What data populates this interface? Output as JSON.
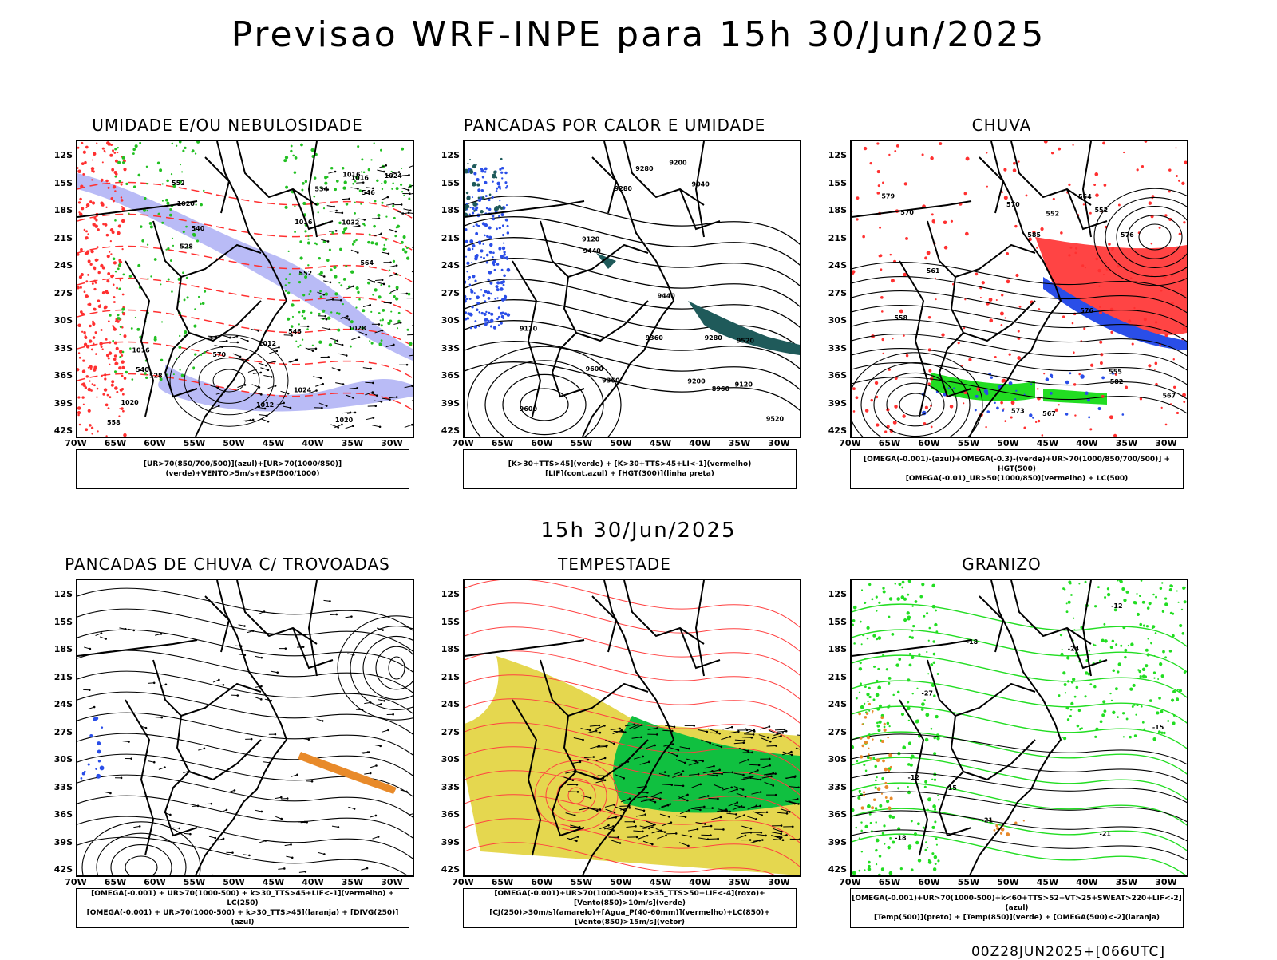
{
  "page": {
    "title": "Previsao WRF-INPE  para 15h 30/Jun/2025",
    "mid_time": "15h 30/Jun/2025",
    "footer": "00Z28JUN2025+[066UTC]"
  },
  "axes": {
    "lat_labels": [
      "12S",
      "15S",
      "18S",
      "21S",
      "24S",
      "27S",
      "30S",
      "33S",
      "36S",
      "39S",
      "42S"
    ],
    "lon_labels": [
      "70W",
      "65W",
      "60W",
      "55W",
      "50W",
      "45W",
      "40W",
      "35W",
      "30W"
    ]
  },
  "panels": [
    {
      "title": "UMIDADE E/OU NEBULOSIDADE",
      "legend": [
        "[UR>70(850/700/500)](azul)+[UR>70(1000/850)](verde)+VENTO>5m/s+ESP(500/1000)"
      ],
      "colors": {
        "moist": "#8a8ef0",
        "green": "#22c022",
        "red": "#ff3030"
      }
    },
    {
      "title": "PANCADAS POR CALOR E UMIDADE",
      "legend": [
        "[K>30+TTS>45](verde) + [K>30+TTS>45+LI<-1](vermelho)",
        "[LIF](cont.azul) + [HGT(300)](linha preta)"
      ],
      "colors": {
        "teal": "#1f5a5a",
        "blue": "#2a4ee8"
      }
    },
    {
      "title": "CHUVA",
      "legend": [
        "[OMEGA(-0.001)-(azul)+OMEGA(-0.3)-(verde)+UR>70(1000/850/700/500)] + HGT(500)",
        "[OMEGA(-0.01)_UR>50(1000/850)(vermelho) + LC(500)"
      ],
      "colors": {
        "red": "#ff3030",
        "blue": "#2a4ee8",
        "green": "#22dd22"
      }
    },
    {
      "title": "PANCADAS DE CHUVA C/ TROVOADAS",
      "legend": [
        "[OMEGA(-0.001) + UR>70(1000-500) + k>30_TTS>45+LIF<-1](vermelho) + LC(250)",
        "[OMEGA(-0.001) + UR>70(1000-500) + k>30_TTS>45](laranja) + [DIVG(250)](azul)"
      ],
      "colors": {
        "orange": "#e88a2a",
        "blue": "#2a4ee8"
      }
    },
    {
      "title": "TEMPESTADE",
      "legend": [
        "[OMEGA(-0.001)+UR>70(1000-500)+k>35_TTS>50+LIF<-4](roxo)+[Vento(850)>10m/s](verde)",
        "[CJ(250)>30m/s](amarelo)+[Agua_P(40-60mm)](vermelho)+LC(850)+[Vento(850)>15m/s](vetor)"
      ],
      "colors": {
        "yellow": "#e0d030",
        "green": "#10c040",
        "red": "#ff4040"
      }
    },
    {
      "title": "GRANIZO",
      "legend": [
        "[OMEGA(-0.001)+UR>70(1000-500)+k<60+TTS>52+VT>25+SWEAT>220+LIF<-2](azul)",
        "[Temp(500)](preto) + [Temp(850)](verde) + [OMEGA(500)<-2](laranja)"
      ],
      "colors": {
        "green": "#22dd22",
        "orange": "#e88a2a"
      }
    }
  ],
  "contour_labels": {
    "p1": [
      "1016",
      "1020",
      "1024",
      "1028",
      "1032",
      "1012",
      "1016",
      "1020",
      "1024",
      "1016",
      "1012",
      "1016",
      "1020",
      "570",
      "564",
      "558",
      "552",
      "546",
      "540",
      "534",
      "528",
      "552",
      "546",
      "540",
      "528"
    ],
    "p2": [
      "9600",
      "9520",
      "9440",
      "9360",
      "9280",
      "9200",
      "9120",
      "9040",
      "8960",
      "9600",
      "9520",
      "9440",
      "9360",
      "9280",
      "9200",
      "9120",
      "9280",
      "9120"
    ],
    "p3": [
      "585",
      "582",
      "579",
      "576",
      "573",
      "570",
      "567",
      "564",
      "561",
      "558",
      "555",
      "552",
      "576",
      "570",
      "567",
      "552"
    ],
    "p6": [
      "-12",
      "-15",
      "-18",
      "-21",
      "-27",
      "-12",
      "-15",
      "-18",
      "-21",
      "-24"
    ]
  }
}
